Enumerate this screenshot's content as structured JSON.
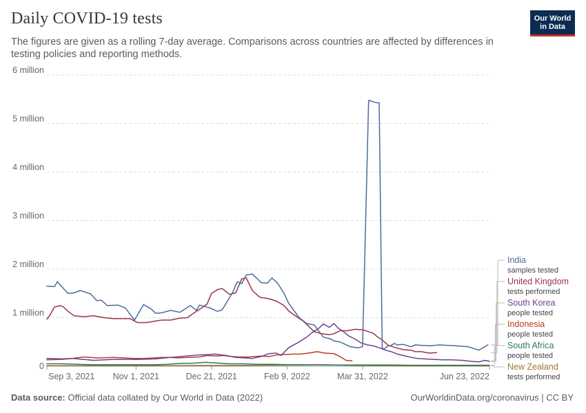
{
  "header": {
    "title": "Daily COVID-19 tests",
    "subtitle": "The figures are given as a rolling 7-day average. Comparisons across countries are affected by differences in testing policies and reporting methods.",
    "logo_line1": "Our World",
    "logo_line2": "in Data"
  },
  "footer": {
    "source_label": "Data source:",
    "source_text": "Official data collated by Our World in Data (2022)",
    "link_text": "OurWorldinData.org/coronavirus",
    "license": "CC BY"
  },
  "chart_data": {
    "type": "line",
    "title": "Daily COVID-19 tests",
    "xlabel": "",
    "ylabel": "",
    "x_range": [
      0,
      293
    ],
    "ylim": [
      0,
      6000000
    ],
    "grid": true,
    "y_ticks": [
      {
        "value": 0,
        "label": "0"
      },
      {
        "value": 1000000,
        "label": "1 million"
      },
      {
        "value": 2000000,
        "label": "2 million"
      },
      {
        "value": 3000000,
        "label": "3 million"
      },
      {
        "value": 4000000,
        "label": "4 million"
      },
      {
        "value": 5000000,
        "label": "5 million"
      },
      {
        "value": 6000000,
        "label": "6 million"
      }
    ],
    "x_ticks": [
      {
        "value": 0,
        "label": "Sep 3, 2021"
      },
      {
        "value": 59,
        "label": "Nov 1, 2021"
      },
      {
        "value": 109,
        "label": "Dec 21, 2021"
      },
      {
        "value": 159,
        "label": "Feb 9, 2022"
      },
      {
        "value": 209,
        "label": "Mar 31, 2022"
      },
      {
        "value": 293,
        "label": "Jun 23, 2022"
      }
    ],
    "series": [
      {
        "name": "India",
        "metric": "samples tested",
        "color": "#4c6a9c",
        "x": [
          0,
          5,
          7,
          11,
          14,
          18,
          22,
          29,
          33,
          36,
          40,
          47,
          52,
          58,
          64,
          69,
          72,
          76,
          82,
          88,
          95,
          99,
          101,
          108,
          113,
          116,
          123,
          126,
          129,
          132,
          136,
          142,
          146,
          149,
          153,
          157,
          160,
          163,
          167,
          172,
          177,
          183,
          188,
          190,
          194,
          201,
          206,
          209,
          213,
          218,
          220,
          222,
          223,
          226,
          228,
          230,
          232,
          236,
          241,
          244,
          248,
          254,
          260,
          265,
          271,
          279,
          286,
          292
        ],
        "values": [
          1650000,
          1640000,
          1740000,
          1600000,
          1500000,
          1510000,
          1560000,
          1490000,
          1350000,
          1360000,
          1250000,
          1260000,
          1200000,
          950000,
          1270000,
          1180000,
          1090000,
          1100000,
          1150000,
          1110000,
          1250000,
          1150000,
          1260000,
          1200000,
          1130000,
          1160000,
          1520000,
          1740000,
          1700000,
          1880000,
          1900000,
          1720000,
          1710000,
          1820000,
          1700000,
          1500000,
          1300000,
          1170000,
          1000000,
          880000,
          850000,
          600000,
          560000,
          520000,
          500000,
          400000,
          380000,
          400000,
          5480000,
          5430000,
          5430000,
          380000,
          350000,
          420000,
          430000,
          470000,
          440000,
          450000,
          400000,
          440000,
          430000,
          420000,
          440000,
          430000,
          420000,
          400000,
          330000,
          440000
        ]
      },
      {
        "name": "United Kingdom",
        "metric": "tests performed",
        "color": "#9a3246",
        "x": [
          0,
          2,
          5,
          9,
          11,
          14,
          18,
          25,
          31,
          38,
          44,
          51,
          55,
          60,
          66,
          72,
          76,
          82,
          88,
          93,
          97,
          101,
          106,
          109,
          113,
          116,
          121,
          125,
          129,
          132,
          136,
          141,
          147,
          152,
          157,
          160,
          164,
          170,
          174,
          177,
          182,
          187,
          190,
          194,
          199,
          204,
          209,
          212,
          216,
          219,
          222,
          226,
          231,
          236,
          241,
          244,
          248,
          253,
          258
        ],
        "values": [
          970000,
          1050000,
          1220000,
          1250000,
          1220000,
          1130000,
          1040000,
          1020000,
          1040000,
          1000000,
          980000,
          980000,
          980000,
          900000,
          900000,
          930000,
          950000,
          950000,
          990000,
          1000000,
          1090000,
          1170000,
          1280000,
          1500000,
          1580000,
          1600000,
          1480000,
          1510000,
          1800000,
          1820000,
          1560000,
          1420000,
          1390000,
          1340000,
          1250000,
          1140000,
          1050000,
          920000,
          800000,
          710000,
          670000,
          650000,
          670000,
          730000,
          730000,
          760000,
          750000,
          720000,
          680000,
          600000,
          540000,
          430000,
          380000,
          340000,
          330000,
          300000,
          300000,
          270000,
          280000
        ]
      },
      {
        "name": "South Korea",
        "metric": "people tested",
        "color": "#6d3e91",
        "x": [
          0,
          10,
          17,
          24,
          31,
          38,
          44,
          51,
          61,
          72,
          82,
          92,
          100,
          107,
          111,
          119,
          125,
          131,
          136,
          142,
          147,
          152,
          155,
          160,
          167,
          172,
          176,
          180,
          183,
          187,
          190,
          193,
          196,
          200,
          204,
          208,
          212,
          216,
          220,
          224,
          228,
          232,
          236,
          240,
          245,
          250,
          256,
          262,
          268,
          275,
          281,
          286,
          290,
          293
        ],
        "values": [
          160000,
          150000,
          160000,
          140000,
          120000,
          130000,
          140000,
          140000,
          140000,
          150000,
          180000,
          210000,
          230000,
          240000,
          250000,
          220000,
          180000,
          170000,
          160000,
          200000,
          260000,
          270000,
          220000,
          380000,
          500000,
          600000,
          700000,
          780000,
          870000,
          800000,
          880000,
          780000,
          720000,
          620000,
          560000,
          480000,
          440000,
          420000,
          380000,
          330000,
          300000,
          250000,
          220000,
          190000,
          160000,
          150000,
          140000,
          130000,
          130000,
          120000,
          100000,
          90000,
          120000,
          100000
        ]
      },
      {
        "name": "Indonesia",
        "metric": "people tested",
        "color": "#b73d20",
        "x": [
          0,
          10,
          17,
          24,
          34,
          44,
          51,
          58,
          64,
          71,
          76,
          81,
          87,
          93,
          101,
          106,
          112,
          117,
          122,
          127,
          133,
          138,
          142,
          147,
          152,
          157,
          163,
          168,
          173,
          179,
          184,
          190,
          194,
          198,
          202
        ],
        "values": [
          130000,
          140000,
          160000,
          190000,
          170000,
          180000,
          170000,
          160000,
          160000,
          170000,
          180000,
          180000,
          170000,
          180000,
          190000,
          220000,
          210000,
          220000,
          200000,
          190000,
          190000,
          200000,
          210000,
          200000,
          230000,
          240000,
          250000,
          250000,
          270000,
          300000,
          270000,
          260000,
          200000,
          120000,
          110000
        ]
      },
      {
        "name": "South Africa",
        "metric": "people tested",
        "color": "#2a7a5c",
        "x": [
          0,
          10,
          20,
          30,
          40,
          50,
          60,
          70,
          80,
          85,
          90,
          95,
          100,
          105,
          110,
          115,
          120,
          130,
          140,
          150,
          160,
          170,
          180,
          190,
          200,
          210,
          220,
          230,
          240,
          250,
          260,
          270,
          280,
          290,
          293
        ],
        "values": [
          50000,
          50000,
          40000,
          30000,
          30000,
          30000,
          30000,
          30000,
          40000,
          50000,
          60000,
          60000,
          70000,
          80000,
          70000,
          60000,
          50000,
          50000,
          40000,
          40000,
          30000,
          30000,
          30000,
          25000,
          25000,
          25000,
          25000,
          25000,
          20000,
          20000,
          20000,
          20000,
          20000,
          20000,
          20000
        ]
      },
      {
        "name": "New Zealand",
        "metric": "tests performed",
        "color": "#a2743a",
        "x": [
          0,
          20,
          40,
          60,
          80,
          100,
          120,
          140,
          160,
          170,
          180,
          190,
          200,
          210,
          220,
          240,
          260,
          280,
          293
        ],
        "values": [
          12000,
          10000,
          10000,
          10000,
          12000,
          15000,
          15000,
          20000,
          22000,
          25000,
          30000,
          25000,
          20000,
          15000,
          12000,
          10000,
          8000,
          8000,
          8000
        ]
      }
    ]
  }
}
